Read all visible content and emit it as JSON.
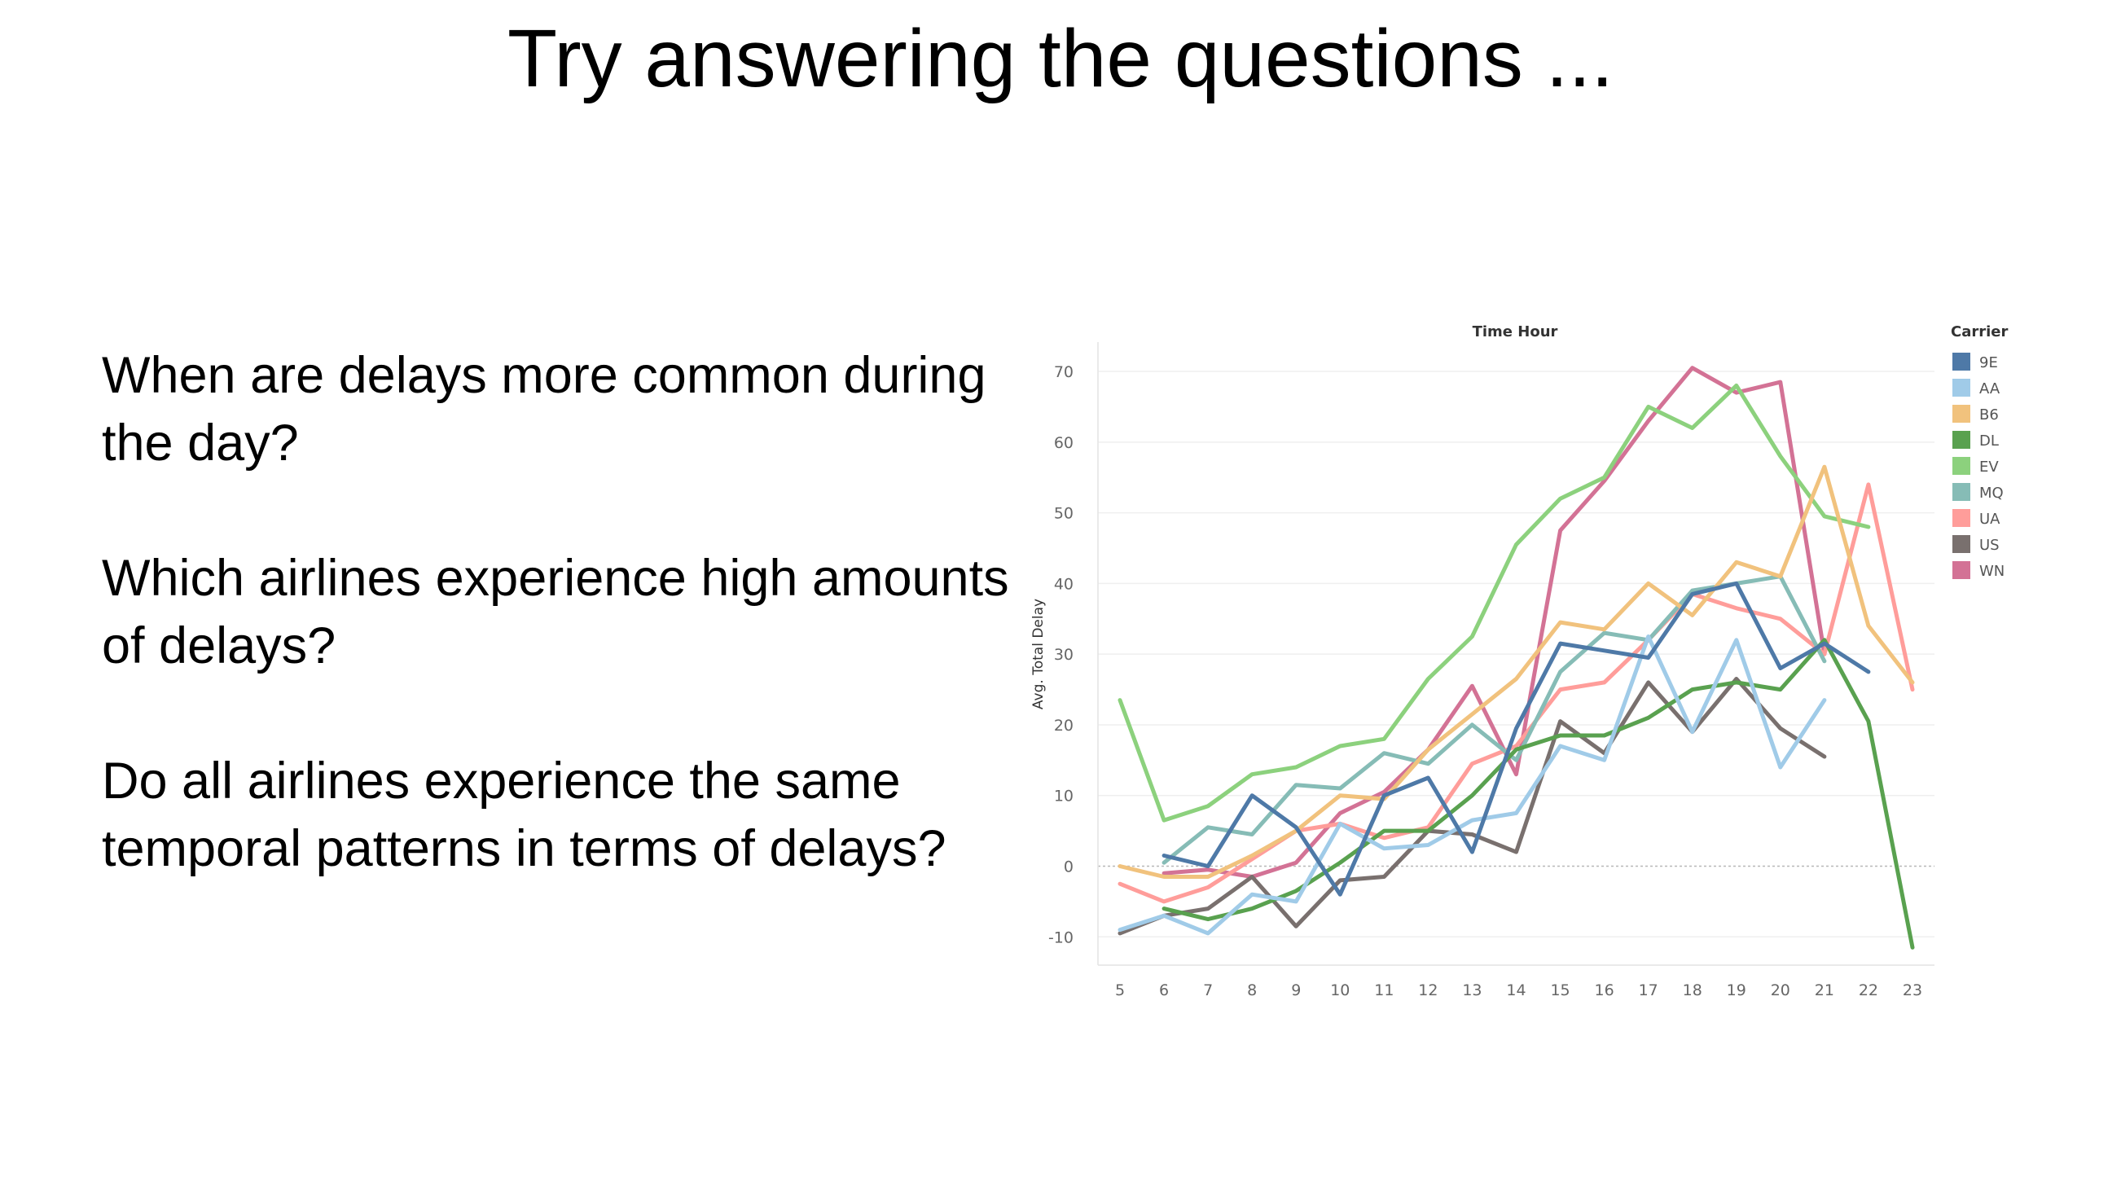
{
  "slide": {
    "title": "Try answering the questions ...",
    "questions": [
      "When are delays more common during the day?",
      "Which airlines experience high amounts of delays?",
      "Do all airlines experience the same temporal patterns in terms of delays?"
    ]
  },
  "chart_data": {
    "type": "line",
    "title": "Time Hour",
    "xlabel": "",
    "ylabel": "Avg. Total Delay",
    "legend_title": "Carrier",
    "legend_position": "right",
    "x": [
      5,
      6,
      7,
      8,
      9,
      10,
      11,
      12,
      13,
      14,
      15,
      16,
      17,
      18,
      19,
      20,
      21,
      22,
      23
    ],
    "ylim": [
      -14,
      73
    ],
    "yticks": [
      -10,
      0,
      10,
      20,
      30,
      40,
      50,
      60,
      70
    ],
    "grid": true,
    "series": [
      {
        "name": "9E",
        "color": "#4e79a7",
        "values": [
          null,
          1.5,
          0,
          10,
          5.5,
          -4,
          10,
          12.5,
          2,
          19.5,
          31.5,
          30.5,
          29.5,
          38.5,
          40,
          28,
          31.5,
          27.5,
          null
        ]
      },
      {
        "name": "AA",
        "color": "#a0cbe8",
        "values": [
          -9,
          -7,
          -9.5,
          -4,
          -5,
          6,
          2.5,
          3,
          6.5,
          7.5,
          17,
          15,
          32.5,
          19,
          32,
          14,
          23.5,
          null,
          null
        ]
      },
      {
        "name": "B6",
        "color": "#f1c27d",
        "values": [
          0,
          -1.5,
          -1.5,
          1.5,
          5,
          10,
          9.5,
          16.5,
          21.5,
          26.5,
          34.5,
          33.5,
          40,
          35.5,
          43,
          41,
          56.5,
          34,
          26
        ]
      },
      {
        "name": "DL",
        "color": "#59a14f",
        "values": [
          null,
          -6,
          -7.5,
          -6,
          -3.5,
          0.5,
          5,
          5,
          10,
          16.5,
          18.5,
          18.5,
          21,
          25,
          26,
          25,
          32,
          20.5,
          -11.5
        ]
      },
      {
        "name": "EV",
        "color": "#8cd17d",
        "values": [
          23.5,
          6.5,
          8.5,
          13,
          14,
          17,
          18,
          26.5,
          32.5,
          45.5,
          52,
          55,
          65,
          62,
          68,
          58,
          49.5,
          48,
          null
        ]
      },
      {
        "name": "MQ",
        "color": "#86bcb6",
        "values": [
          null,
          0.5,
          5.5,
          4.5,
          11.5,
          11,
          16,
          14.5,
          20,
          15,
          27.5,
          33,
          32,
          39,
          40,
          41,
          29,
          null,
          null
        ]
      },
      {
        "name": "UA",
        "color": "#ff9d9a",
        "values": [
          -2.5,
          -5,
          -3,
          1,
          5,
          6,
          4,
          5.5,
          14.5,
          17,
          25,
          26,
          32,
          38.5,
          36.5,
          35,
          30,
          54,
          25
        ]
      },
      {
        "name": "US",
        "color": "#79706e",
        "values": [
          -9.5,
          -7,
          -6,
          -1.5,
          -8.5,
          -2,
          -1.5,
          5,
          4.5,
          2,
          20.5,
          16,
          26,
          19,
          26.5,
          19.5,
          15.5,
          null,
          null
        ]
      },
      {
        "name": "WN",
        "color": "#d37295",
        "values": [
          null,
          -1,
          -0.5,
          -1.5,
          0.5,
          7.5,
          10.5,
          16.5,
          25.5,
          13,
          47.5,
          54.5,
          63,
          70.5,
          67,
          68.5,
          30,
          null,
          null
        ]
      }
    ]
  }
}
